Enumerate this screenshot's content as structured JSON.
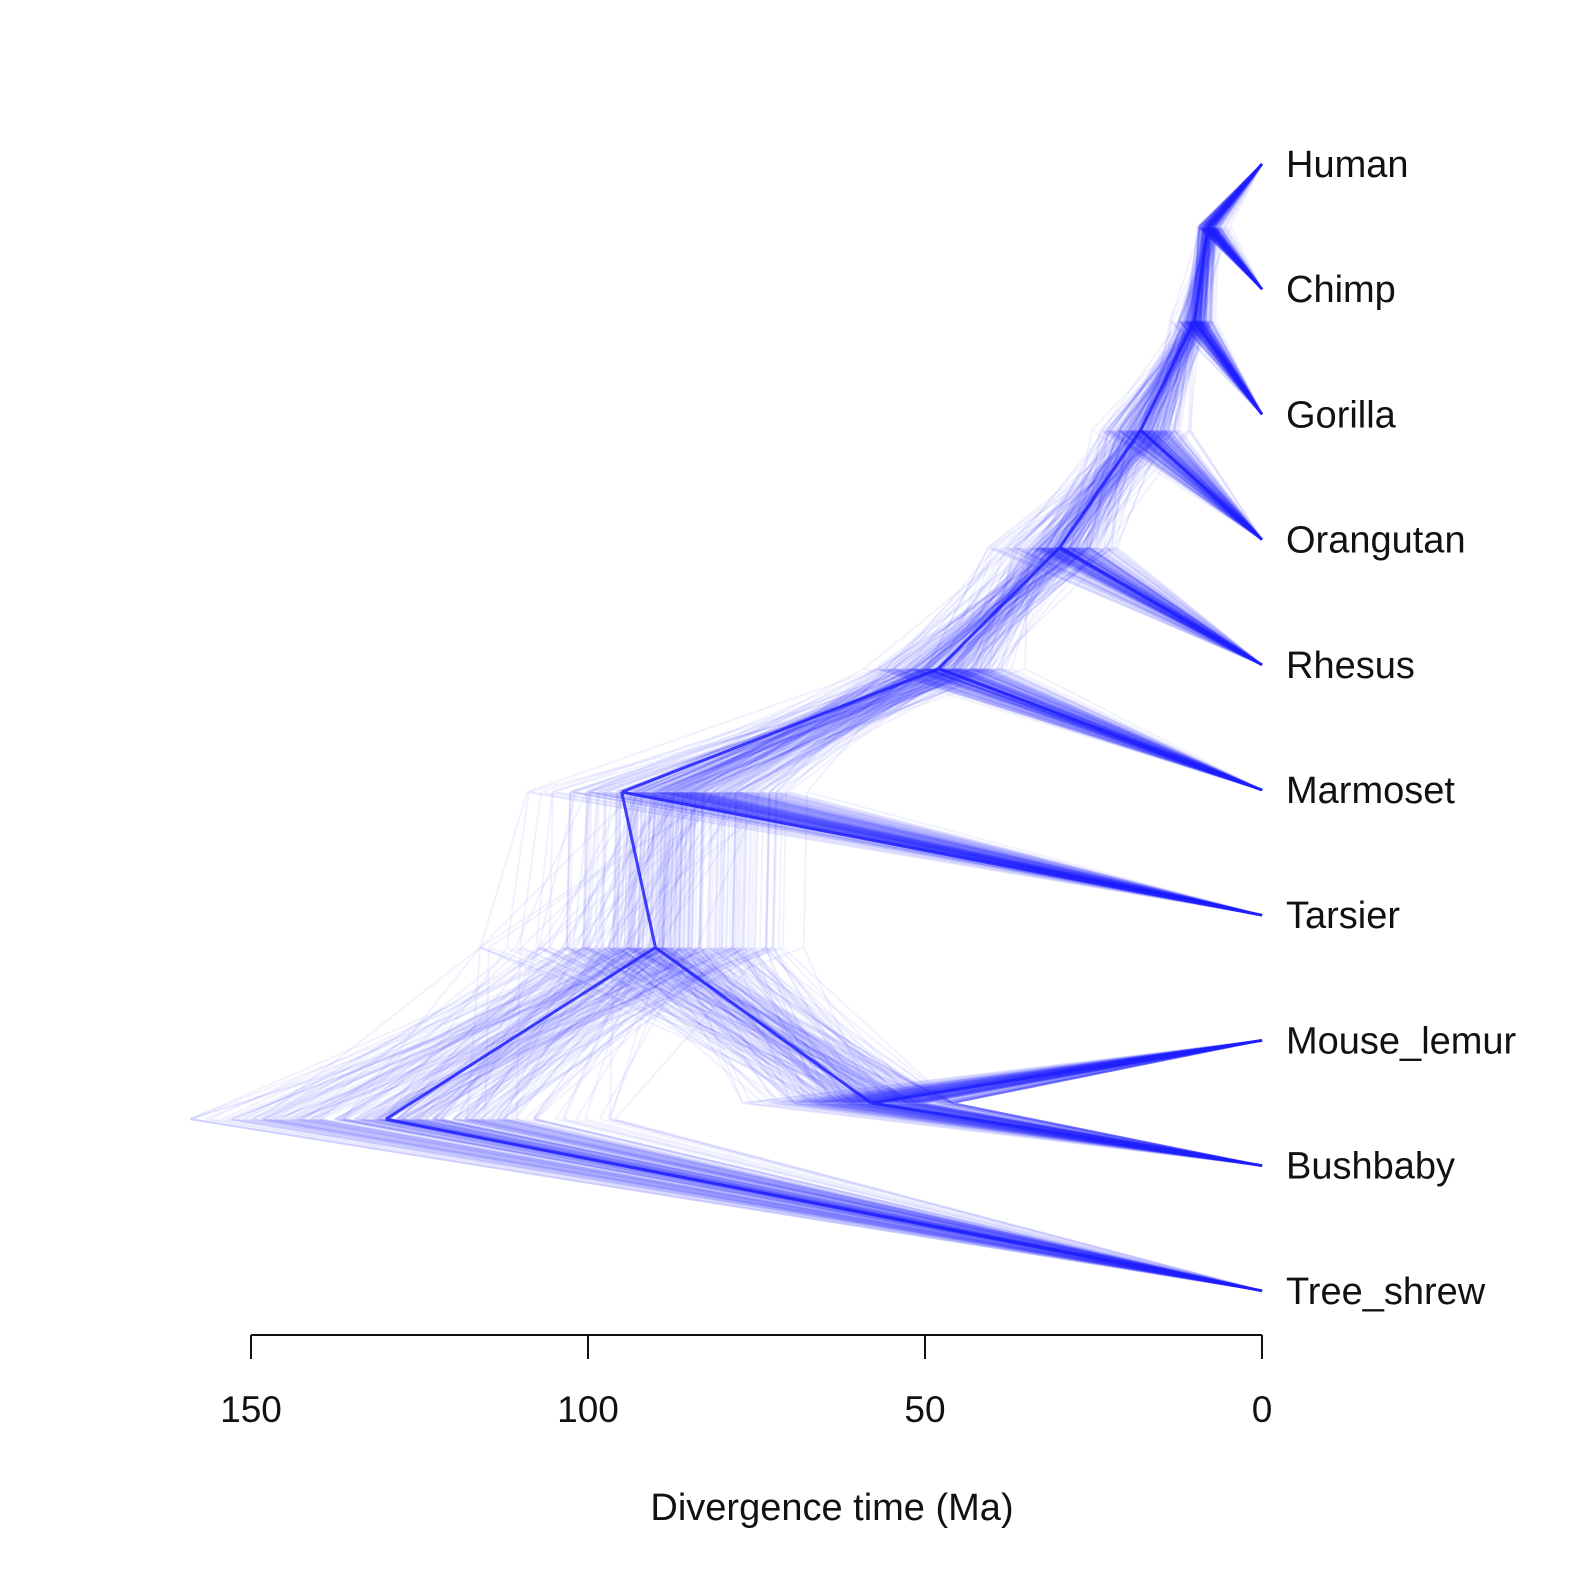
{
  "chart_data": {
    "type": "densitree",
    "xlabel": "Divergence time (Ma)",
    "x_ticks": [
      150,
      100,
      50,
      0
    ],
    "xlim": [
      150,
      0
    ],
    "x_reversed": true,
    "color": "#2020ff",
    "tips": [
      "Human",
      "Chimp",
      "Gorilla",
      "Orangutan",
      "Rhesus",
      "Marmoset",
      "Tarsier",
      "Mouse_lemur",
      "Bushbaby",
      "Tree_shrew"
    ],
    "nodes": [
      {
        "id": "human_chimp",
        "children": [
          "Human",
          "Chimp"
        ],
        "age_mean": 8,
        "age_range": [
          6,
          10
        ]
      },
      {
        "id": "hominines",
        "children": [
          "human_chimp",
          "Gorilla"
        ],
        "age_mean": 10,
        "age_range": [
          8,
          13
        ]
      },
      {
        "id": "hominids",
        "children": [
          "hominines",
          "Orangutan"
        ],
        "age_mean": 18,
        "age_range": [
          14,
          25
        ]
      },
      {
        "id": "catarrhines",
        "children": [
          "hominids",
          "Rhesus"
        ],
        "age_mean": 30,
        "age_range": [
          25,
          40
        ]
      },
      {
        "id": "anthropoids",
        "children": [
          "catarrhines",
          "Marmoset"
        ],
        "age_mean": 48,
        "age_range": [
          35,
          55
        ]
      },
      {
        "id": "haplorhines",
        "children": [
          "anthropoids",
          "Tarsier"
        ],
        "age_mean": 95,
        "age_range": [
          70,
          105
        ]
      },
      {
        "id": "strepsirrhines",
        "children": [
          "Mouse_lemur",
          "Bushbaby"
        ],
        "age_mean": 58,
        "age_range": [
          50,
          80
        ]
      },
      {
        "id": "primates",
        "children": [
          "haplorhines",
          "strepsirrhines"
        ],
        "age_mean": 90,
        "age_range": [
          72,
          112
        ]
      },
      {
        "id": "root",
        "children": [
          "primates",
          "Tree_shrew"
        ],
        "age_mean": 130,
        "age_range": [
          100,
          155
        ]
      }
    ]
  }
}
